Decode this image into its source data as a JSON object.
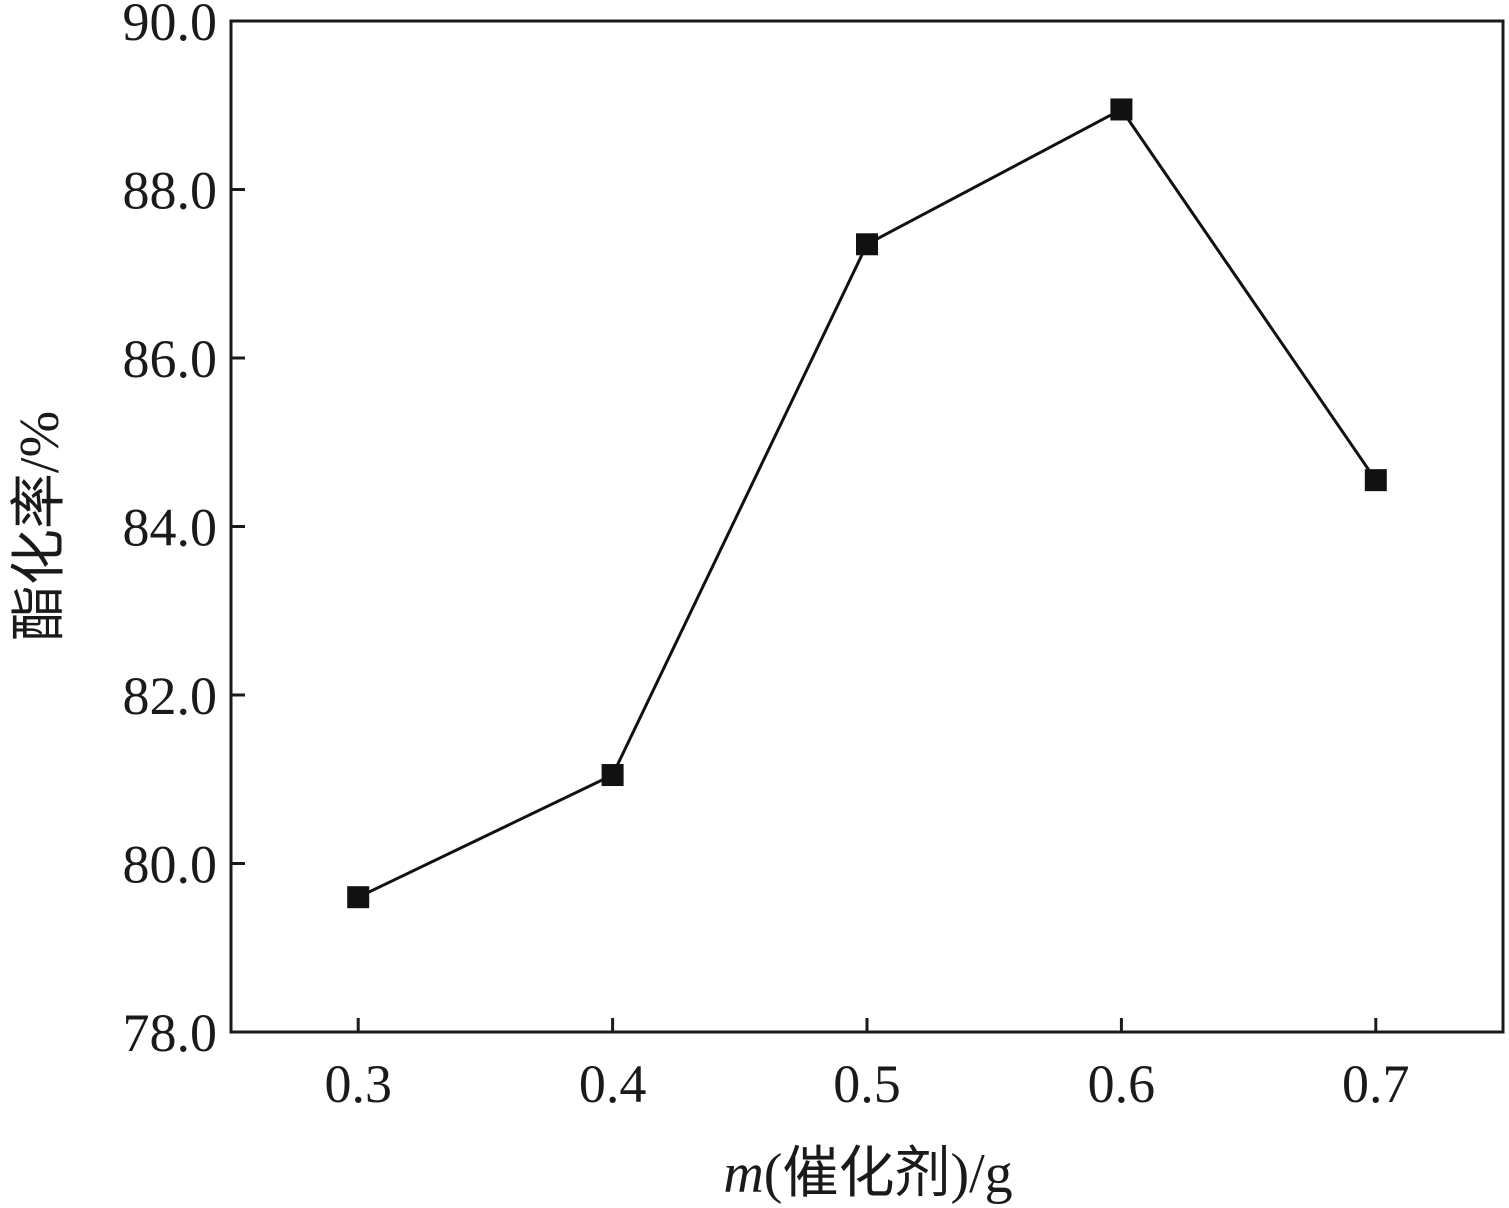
{
  "chart_data": {
    "type": "line",
    "title": "",
    "x_label_italic": "m",
    "x_label_rest": "(催化剂)/g",
    "y_label": "酯化率/%",
    "xlim": [
      0.25,
      0.75
    ],
    "ylim": [
      78.0,
      90.0
    ],
    "x_ticks": [
      "0.3",
      "0.4",
      "0.5",
      "0.6",
      "0.7"
    ],
    "y_ticks": [
      "78.0",
      "80.0",
      "82.0",
      "84.0",
      "86.0",
      "88.0",
      "90.0"
    ],
    "grid": false,
    "series": [
      {
        "marker": "square",
        "color": "#111111",
        "points": [
          {
            "x": 0.3,
            "y": 79.6
          },
          {
            "x": 0.4,
            "y": 81.05
          },
          {
            "x": 0.5,
            "y": 87.35
          },
          {
            "x": 0.6,
            "y": 88.95
          },
          {
            "x": 0.7,
            "y": 84.55
          }
        ]
      }
    ]
  }
}
